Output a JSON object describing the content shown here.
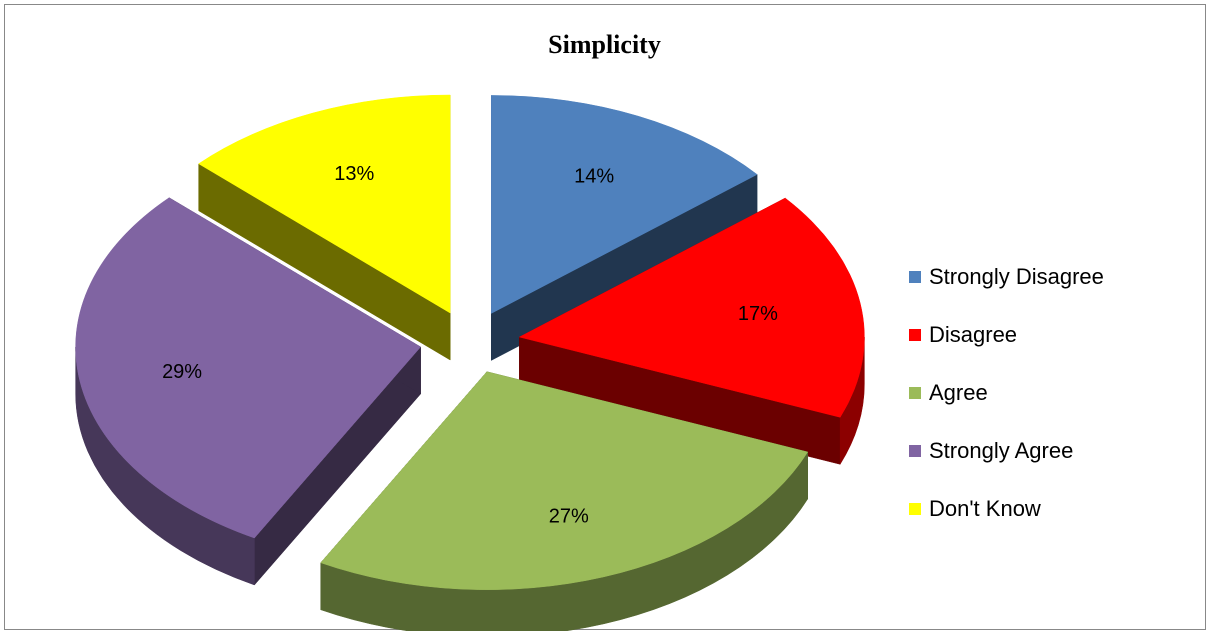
{
  "chart_data": {
    "type": "pie",
    "title": "Simplicity",
    "slices": [
      {
        "label": "Strongly Disagree",
        "value": 14,
        "display": "14%",
        "color": "#4F81BD"
      },
      {
        "label": "Disagree",
        "value": 17,
        "display": "17%",
        "color": "#FF0000"
      },
      {
        "label": "Agree",
        "value": 27,
        "display": "27%",
        "color": "#9BBB59"
      },
      {
        "label": "Strongly Agree",
        "value": 29,
        "display": "29%",
        "color": "#8064A2"
      },
      {
        "label": "Don't Know",
        "value": 13,
        "display": "13%",
        "color": "#FFFF00"
      }
    ],
    "legend_position": "right",
    "style": "3d-exploded"
  }
}
